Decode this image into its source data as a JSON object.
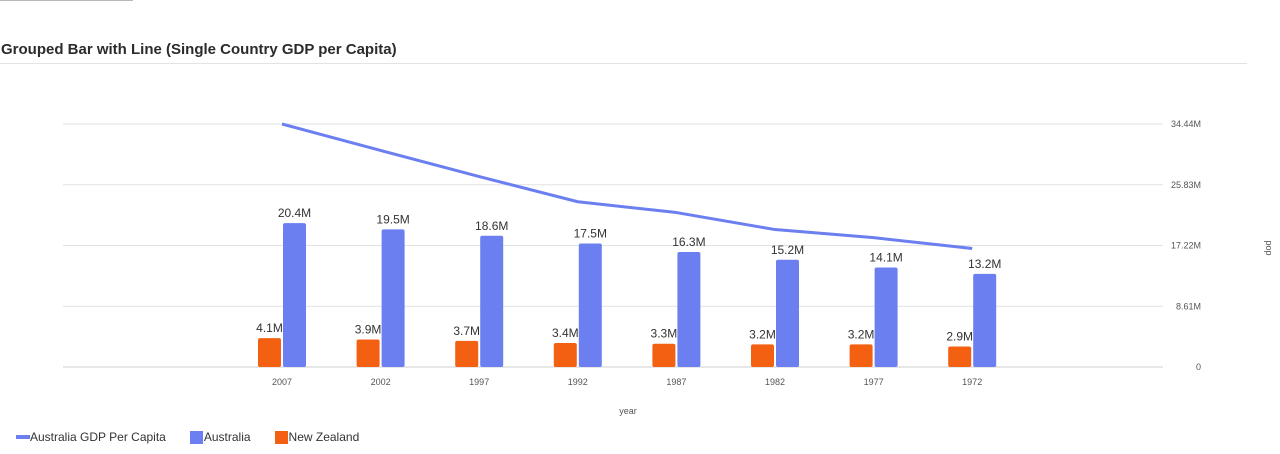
{
  "panel": {
    "title": "Grouped Bar with Line (Single Country GDP per Capita)"
  },
  "chart_data": {
    "type": "bar",
    "title": "Grouped Bar with Line (Single Country GDP per Capita)",
    "xlabel": "year",
    "ylabel": "pop",
    "categories": [
      "2007",
      "2002",
      "1997",
      "1992",
      "1987",
      "1982",
      "1977",
      "1972"
    ],
    "ylim": [
      0,
      34.44
    ],
    "y_ticks": [
      "0",
      "8.61M",
      "17.22M",
      "25.83M",
      "34.44M"
    ],
    "grid": true,
    "legend_position": "bottom-left",
    "series": [
      {
        "name": "Australia GDP Per Capita",
        "kind": "line",
        "color": "#6b7ff0",
        "values": [
          34.44,
          30.69,
          26.99,
          23.42,
          21.89,
          19.48,
          18.33,
          16.79
        ]
      },
      {
        "name": "Australia",
        "kind": "bar",
        "color": "#6b7ff0",
        "values": [
          20.4,
          19.5,
          18.6,
          17.5,
          16.3,
          15.2,
          14.1,
          13.2
        ],
        "labels": [
          "20.4M",
          "19.5M",
          "18.6M",
          "17.5M",
          "16.3M",
          "15.2M",
          "14.1M",
          "13.2M"
        ]
      },
      {
        "name": "New Zealand",
        "kind": "bar",
        "color": "#f46011",
        "values": [
          4.1,
          3.9,
          3.7,
          3.4,
          3.3,
          3.2,
          3.2,
          2.9
        ],
        "labels": [
          "4.1M",
          "3.9M",
          "3.7M",
          "3.4M",
          "3.3M",
          "3.2M",
          "3.2M",
          "2.9M"
        ]
      }
    ]
  }
}
